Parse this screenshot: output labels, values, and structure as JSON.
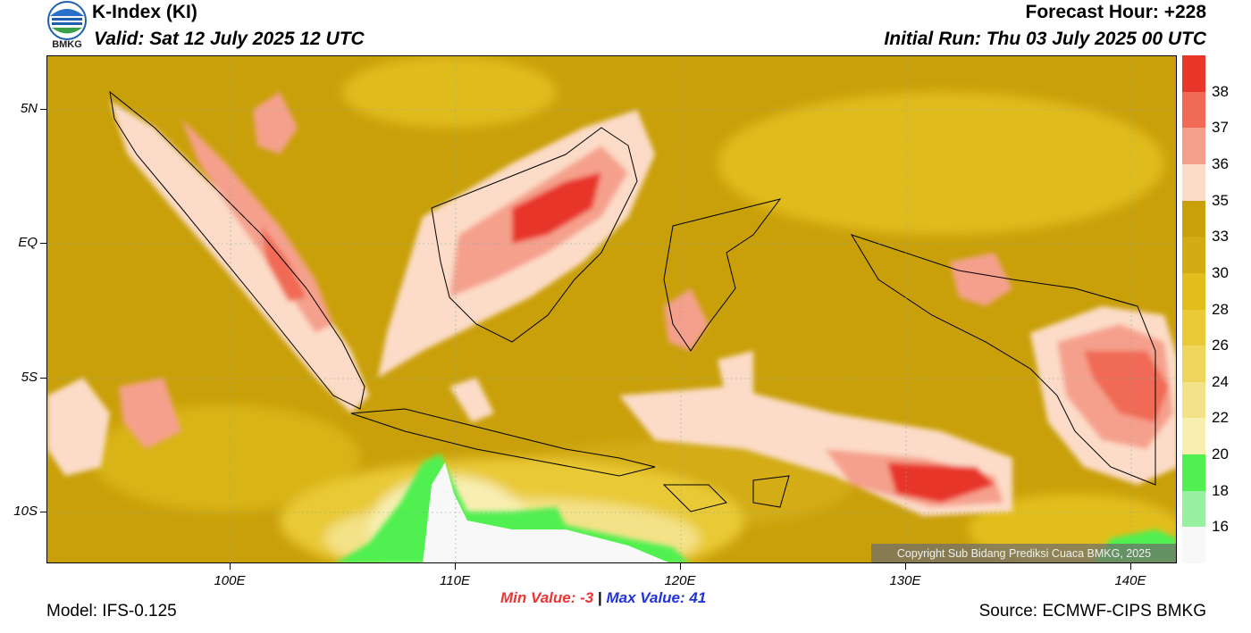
{
  "header": {
    "title": "K-Index (KI)",
    "valid": "Valid: Sat 12 July 2025 12 UTC",
    "forecast_hour": "Forecast Hour: +228",
    "initial_run": "Initial Run: Thu 03 July 2025 00 UTC"
  },
  "logo": {
    "text": "BMKG",
    "icon": "bmkg-logo-icon"
  },
  "map": {
    "lat_labels": [
      "5N",
      "EQ",
      "5S",
      "10S"
    ],
    "lon_labels": [
      "100E",
      "110E",
      "120E",
      "130E",
      "140E"
    ],
    "copyright": "Copyright Sub Bidang Prediksi Cuaca BMKG, 2025"
  },
  "colorbar": {
    "labels": [
      "38",
      "37",
      "36",
      "35",
      "33",
      "30",
      "28",
      "26",
      "24",
      "22",
      "20",
      "18",
      "16"
    ],
    "colors": [
      "#e8362a",
      "#f06a55",
      "#f5a08c",
      "#fcdcc8",
      "#c9a00a",
      "#d3ac14",
      "#e2be1c",
      "#e9c935",
      "#eed65c",
      "#f4e288",
      "#f8eeb0",
      "#50f050",
      "#99f0a0",
      "#f8f8f8"
    ]
  },
  "stats": {
    "min_label": "Min Value:",
    "min_value": "-3",
    "separator": "|",
    "max_label": "Max Value:",
    "max_value": "41"
  },
  "footer": {
    "model": "Model: IFS-0.125",
    "source": "Source: ECMWF-CIPS BMKG"
  }
}
